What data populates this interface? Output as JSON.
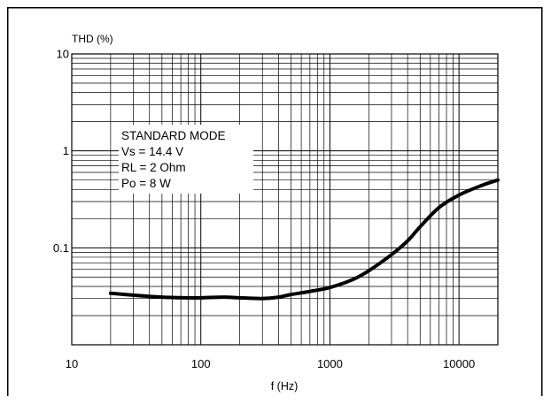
{
  "chart_data": {
    "type": "line",
    "xscale": "log",
    "yscale": "log",
    "xlim": [
      10,
      20000
    ],
    "ylim": [
      0.01,
      10
    ],
    "xlabel": "f (Hz)",
    "ylabel": "THD (%)",
    "x_ticks": [
      {
        "value": 10,
        "label": "10"
      },
      {
        "value": 100,
        "label": "100"
      },
      {
        "value": 1000,
        "label": "1000"
      },
      {
        "value": 10000,
        "label": "10000"
      }
    ],
    "y_ticks": [
      {
        "value": 10,
        "label": "10"
      },
      {
        "value": 1,
        "label": "1"
      },
      {
        "value": 0.1,
        "label": "0.1"
      }
    ],
    "grid": true,
    "annotation": {
      "lines": [
        "STANDARD MODE",
        "Vs = 14.4 V",
        "RL = 2 Ohm",
        "Po = 8 W"
      ],
      "placement": "upper-left"
    },
    "series": [
      {
        "x": [
          20,
          30,
          50,
          80,
          100,
          150,
          200,
          300,
          400,
          500,
          700,
          1000,
          1500,
          2000,
          3000,
          4000,
          5000,
          7000,
          10000,
          15000,
          20000
        ],
        "y": [
          0.034,
          0.0325,
          0.031,
          0.0305,
          0.0305,
          0.031,
          0.0305,
          0.03,
          0.031,
          0.033,
          0.0355,
          0.039,
          0.047,
          0.058,
          0.085,
          0.118,
          0.165,
          0.26,
          0.35,
          0.44,
          0.5
        ]
      }
    ]
  }
}
